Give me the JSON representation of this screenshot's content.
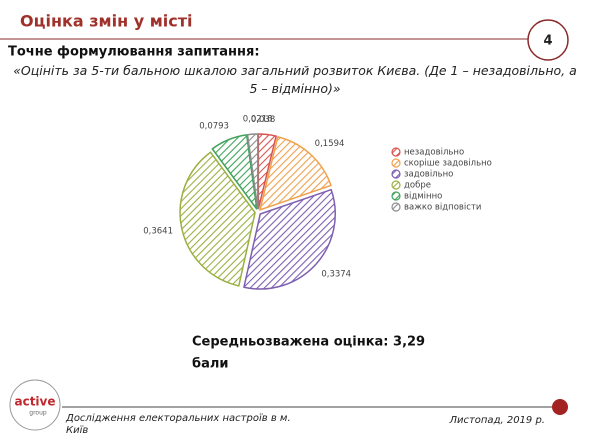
{
  "header": {
    "title": "Оцінка змін у місті",
    "page": "4"
  },
  "question": {
    "label": "Точне формулювання запитання:",
    "text": "«Оцініть за 5-ти бальною шкалою загальний розвиток Києва. (Де 1 – незадовільно, а 5 – відмінно)»"
  },
  "chart_data": {
    "type": "pie",
    "categories": [
      "незадовільно",
      "скоріше задовільно",
      "задовільно",
      "добре",
      "відмінно",
      "важко відповісти"
    ],
    "values": [
      0.038,
      0.1594,
      0.3374,
      0.3641,
      0.0793,
      0.0218
    ],
    "value_labels": [
      "0,038",
      "0,1594",
      "0,3374",
      "0,3641",
      "0,0793",
      "0,0218"
    ],
    "colors": [
      "#d9534f",
      "#f0a04b",
      "#7e5fb0",
      "#9bb043",
      "#3fa35a",
      "#8c8c8c"
    ],
    "legend": "right"
  },
  "summary": {
    "line1": "Середньозважена оцінка: 3,29",
    "line2": "бали"
  },
  "footer": {
    "logo": "active",
    "logo_sub": "group",
    "study": "Дослідження електоральних настроїв в м.",
    "city": "Київ",
    "date": "Листопад, 2019 р."
  }
}
